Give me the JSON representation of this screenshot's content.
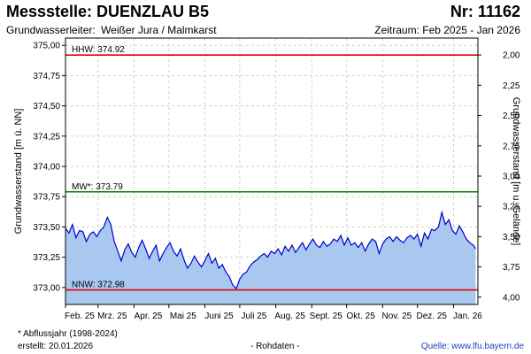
{
  "header": {
    "title": "Messstelle: DUENZLAU B5",
    "number": "Nr: 11162",
    "aquifer_label": "Grundwasserleiter:",
    "aquifer_value": "Weißer Jura / Malmkarst",
    "period": "Zeitraum: Feb 2025 - Jan 2026"
  },
  "footer": {
    "footnote": "* Abflussjahr (1998-2024)",
    "created": "erstellt:  20.01.2026",
    "raw_data": "- Rohdaten -",
    "source": "Quelle:  www.lfu.bayern.de"
  },
  "colors": {
    "fill": "#a8c8f0",
    "line": "#0000cc",
    "hhw": "#e00000",
    "nnw": "#e00000",
    "mw": "#008000",
    "grid": "#d0d0d0",
    "plot_bg": "#ffffff"
  },
  "chart_data": {
    "type": "area",
    "title": "",
    "xlabel": "",
    "ylabel": "Grundwasserstand [m ü. NN]",
    "ylabel_right": "Grundwasserstand [m u. Gelände]",
    "ylim": [
      372.86,
      375.06
    ],
    "yticks": [
      "375,00",
      "374,75",
      "374,50",
      "374,25",
      "374,00",
      "373,75",
      "373,50",
      "373,25",
      "373,00"
    ],
    "yticks_right": [
      "2,00",
      "2,25",
      "2,50",
      "2,75",
      "3,00",
      "3,25",
      "3,50",
      "3,75",
      "4,00"
    ],
    "ground_level": 376.92,
    "x_ticks": [
      "Feb. 25",
      "Mrz. 25",
      "Apr. 25",
      "Mai 25",
      "Juni 25",
      "Juli 25",
      "Aug. 25",
      "Sept. 25",
      "Okt. 25",
      "Nov. 25",
      "Dez. 25",
      "Jan. 26"
    ],
    "x_start": "2025-02-01",
    "x_end": "2026-01-22",
    "grid": true,
    "reference_lines": [
      {
        "label": "HHW: 374.92",
        "value": 374.92,
        "color": "#e00000"
      },
      {
        "label": "MW*: 373.79",
        "value": 373.79,
        "color": "#008000"
      },
      {
        "label": "NNW: 372.98",
        "value": 372.98,
        "color": "#e00000"
      }
    ],
    "series": [
      {
        "x": [
          "2025-02-01",
          "2025-02-04",
          "2025-02-07",
          "2025-02-10",
          "2025-02-13",
          "2025-02-16",
          "2025-02-19",
          "2025-02-22",
          "2025-02-25",
          "2025-02-28",
          "2025-03-03",
          "2025-03-06",
          "2025-03-09",
          "2025-03-12",
          "2025-03-15",
          "2025-03-18",
          "2025-03-21",
          "2025-03-24",
          "2025-03-27",
          "2025-03-30",
          "2025-04-02",
          "2025-04-05",
          "2025-04-08",
          "2025-04-11",
          "2025-04-14",
          "2025-04-17",
          "2025-04-20",
          "2025-04-23",
          "2025-04-26",
          "2025-04-29",
          "2025-05-02",
          "2025-05-05",
          "2025-05-08",
          "2025-05-11",
          "2025-05-14",
          "2025-05-17",
          "2025-05-20",
          "2025-05-23",
          "2025-05-26",
          "2025-05-29",
          "2025-06-01",
          "2025-06-04",
          "2025-06-07",
          "2025-06-10",
          "2025-06-13",
          "2025-06-16",
          "2025-06-19",
          "2025-06-22",
          "2025-06-25",
          "2025-06-28",
          "2025-07-01",
          "2025-07-04",
          "2025-07-07",
          "2025-07-10",
          "2025-07-13",
          "2025-07-16",
          "2025-07-19",
          "2025-07-22",
          "2025-07-25",
          "2025-07-28",
          "2025-07-31",
          "2025-08-03",
          "2025-08-06",
          "2025-08-09",
          "2025-08-12",
          "2025-08-15",
          "2025-08-18",
          "2025-08-21",
          "2025-08-24",
          "2025-08-27",
          "2025-08-30",
          "2025-09-02",
          "2025-09-05",
          "2025-09-08",
          "2025-09-11",
          "2025-09-14",
          "2025-09-17",
          "2025-09-20",
          "2025-09-23",
          "2025-09-26",
          "2025-09-29",
          "2025-10-02",
          "2025-10-05",
          "2025-10-08",
          "2025-10-11",
          "2025-10-14",
          "2025-10-17",
          "2025-10-20",
          "2025-10-23",
          "2025-10-26",
          "2025-10-29",
          "2025-11-01",
          "2025-11-04",
          "2025-11-07",
          "2025-11-10",
          "2025-11-13",
          "2025-11-16",
          "2025-11-19",
          "2025-11-22",
          "2025-11-25",
          "2025-11-28",
          "2025-12-01",
          "2025-12-04",
          "2025-12-07",
          "2025-12-10",
          "2025-12-13",
          "2025-12-16",
          "2025-12-19",
          "2025-12-22",
          "2025-12-25",
          "2025-12-28",
          "2025-12-31",
          "2026-01-03",
          "2026-01-06",
          "2026-01-09",
          "2026-01-12",
          "2026-01-15",
          "2026-01-18",
          "2026-01-20"
        ],
        "values": [
          373.49,
          373.45,
          373.52,
          373.41,
          373.47,
          373.46,
          373.38,
          373.44,
          373.46,
          373.42,
          373.47,
          373.5,
          373.58,
          373.52,
          373.38,
          373.3,
          373.22,
          373.31,
          373.36,
          373.29,
          373.25,
          373.33,
          373.39,
          373.32,
          373.24,
          373.3,
          373.35,
          373.22,
          373.28,
          373.33,
          373.37,
          373.3,
          373.26,
          373.32,
          373.23,
          373.16,
          373.2,
          373.26,
          373.21,
          373.17,
          373.22,
          373.28,
          373.2,
          373.24,
          373.16,
          373.19,
          373.13,
          373.09,
          373.02,
          372.99,
          373.07,
          373.11,
          373.13,
          373.18,
          373.21,
          373.23,
          373.26,
          373.28,
          373.25,
          373.3,
          373.28,
          373.32,
          373.27,
          373.34,
          373.3,
          373.35,
          373.29,
          373.33,
          373.37,
          373.31,
          373.36,
          373.4,
          373.35,
          373.33,
          373.38,
          373.34,
          373.36,
          373.4,
          373.38,
          373.43,
          373.35,
          373.41,
          373.35,
          373.37,
          373.33,
          373.37,
          373.3,
          373.36,
          373.4,
          373.38,
          373.28,
          373.36,
          373.4,
          373.42,
          373.38,
          373.42,
          373.39,
          373.37,
          373.41,
          373.43,
          373.4,
          373.44,
          373.34,
          373.45,
          373.4,
          373.48,
          373.47,
          373.5,
          373.62,
          373.52,
          373.56,
          373.47,
          373.44,
          373.51,
          373.46,
          373.4,
          373.37,
          373.35,
          373.32
        ]
      }
    ]
  }
}
